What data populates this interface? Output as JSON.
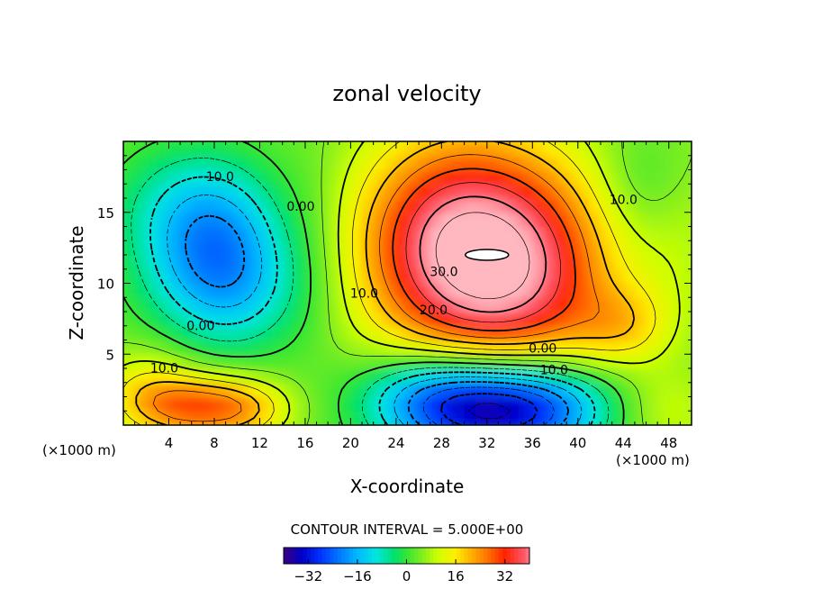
{
  "chart_data": {
    "type": "heatmap",
    "title": "zonal velocity",
    "xlabel": "X-coordinate",
    "ylabel": "Z-coordinate",
    "x_unit_left": "(×1000 m)",
    "x_unit_right": "(×1000 m)",
    "xlim": [
      0,
      50
    ],
    "ylim": [
      0,
      20
    ],
    "x_ticks": [
      4,
      8,
      12,
      16,
      20,
      24,
      28,
      32,
      36,
      40,
      44,
      48
    ],
    "y_ticks": [
      5,
      10,
      15
    ],
    "contour_interval_text": "CONTOUR INTERVAL = 5.000E+00",
    "colorbar": {
      "min": -40,
      "max": 40,
      "ticks": [
        -32,
        -16,
        0,
        16,
        32
      ]
    },
    "features": [
      {
        "kind": "max",
        "x": 32,
        "z": 12,
        "value": 45
      },
      {
        "kind": "min",
        "x": 8,
        "z": 12,
        "value": -18
      },
      {
        "kind": "min",
        "x": 32,
        "z": 1.5,
        "value": -32
      },
      {
        "kind": "max",
        "x": 6,
        "z": 1.5,
        "value": 22
      }
    ],
    "contour_labels": [
      {
        "text": "10.0",
        "x": 8.5,
        "z": 17.2
      },
      {
        "text": "0.00",
        "x": 15.6,
        "z": 15.1
      },
      {
        "text": "10.0",
        "x": 44,
        "z": 15.6
      },
      {
        "text": "30.0",
        "x": 28.2,
        "z": 10.5
      },
      {
        "text": "10.0",
        "x": 21.2,
        "z": 9
      },
      {
        "text": "20.0",
        "x": 27.3,
        "z": 7.8
      },
      {
        "text": "0.00",
        "x": 6.8,
        "z": 6.7
      },
      {
        "text": "0.00",
        "x": 36.9,
        "z": 5.1
      },
      {
        "text": "10.0",
        "x": 3.6,
        "z": 3.7
      },
      {
        "text": "10.0",
        "x": 37.9,
        "z": 3.6
      }
    ]
  }
}
